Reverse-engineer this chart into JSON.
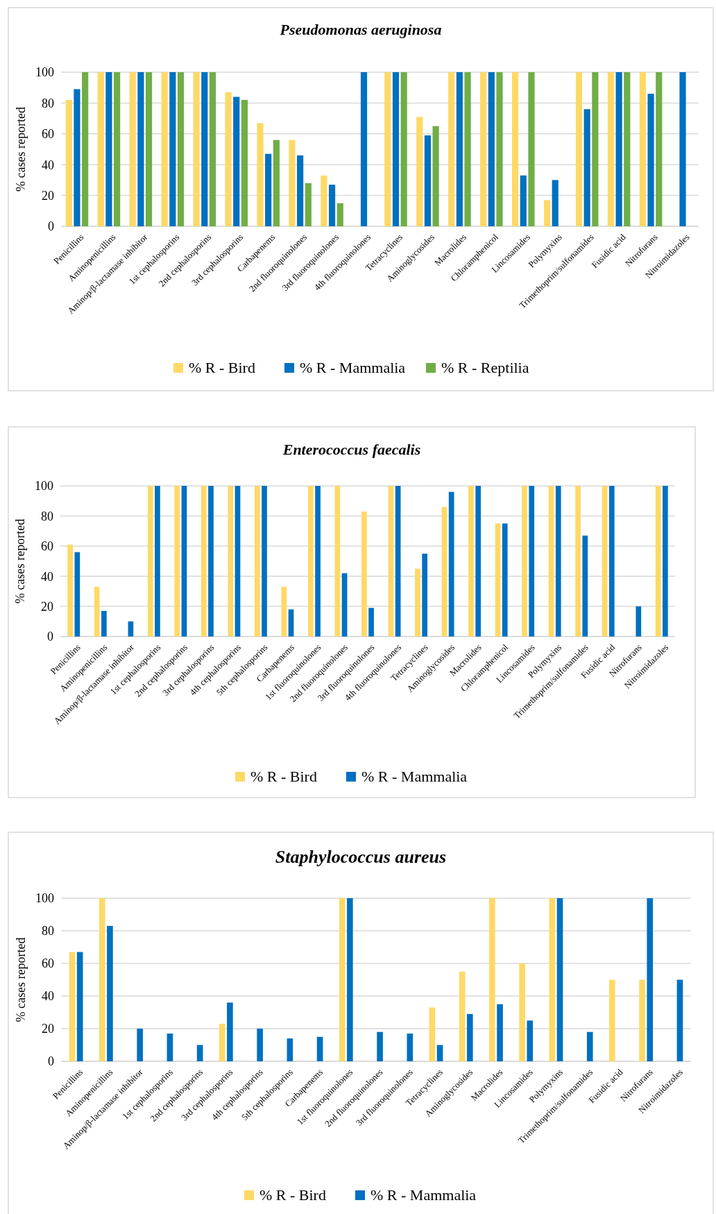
{
  "chart_data": [
    {
      "type": "bar",
      "title": "Pseudomonas aeruginosa",
      "ylabel": "% cases reported",
      "categories": [
        "Penicillins",
        "Aminopenicillins",
        "Aminop/β-lactamase inhibitor",
        "1st cephalosporins",
        "2nd cephalosporins",
        "3rd cephalosporins",
        "Carbapenems",
        "2nd fluoroquinolones",
        "3rd fluoroquinolones",
        "4th fluoroquinolones",
        "Tetracyclines",
        "Aminoglycosides",
        "Macrolides",
        "Chloramphenicol",
        "Lincosamides",
        "Polymyxins",
        "Trimethoprim/sulfonamides",
        "Fusidic acid",
        "Nitrofurans",
        "Nitroimidazoles"
      ],
      "series": [
        {
          "name": "% R - Bird",
          "color": "#ffd966",
          "values": [
            82,
            100,
            100,
            100,
            100,
            87,
            67,
            56,
            33,
            null,
            100,
            71,
            100,
            100,
            100,
            17,
            100,
            100,
            100,
            null
          ]
        },
        {
          "name": "% R - Mammalia",
          "color": "#0070c0",
          "values": [
            89,
            100,
            100,
            100,
            100,
            84,
            47,
            46,
            27,
            100,
            100,
            59,
            100,
            100,
            33,
            30,
            76,
            100,
            86,
            100
          ]
        },
        {
          "name": "% R - Reptilia",
          "color": "#70ad47",
          "values": [
            100,
            100,
            100,
            100,
            100,
            82,
            56,
            28,
            15,
            null,
            100,
            65,
            100,
            100,
            100,
            null,
            100,
            100,
            100,
            null
          ]
        }
      ],
      "ylim": [
        0,
        100
      ],
      "yticks": [
        0,
        20,
        40,
        60,
        80,
        100
      ],
      "grid": "y",
      "legend": "bottom"
    },
    {
      "type": "bar",
      "title": "Enterococcus faecalis",
      "ylabel": "% cases reported",
      "categories": [
        "Penicillins",
        "Aminopenicillins",
        "Aminop/β-lactamase inhibitor",
        "1st cephalosporins",
        "2nd cephalosporins",
        "3rd cephalosporins",
        "4th cephalosporins",
        "5th cephalosporins",
        "Carbapenems",
        "1st fluoroquinolones",
        "2nd fluoroquinolones",
        "3rd fluoroquinolones",
        "4th fluoroquinolones",
        "Tetracyclines",
        "Aminoglycosides",
        "Macrolides",
        "Chloramphenicol",
        "Lincosamides",
        "Polymyxins",
        "Trimethoprim/sulfonamides",
        "Fusidic acid",
        "Nitrofurans",
        "Nitroimidazoles"
      ],
      "series": [
        {
          "name": "% R - Bird",
          "color": "#ffd966",
          "values": [
            61,
            33,
            null,
            100,
            100,
            100,
            100,
            100,
            33,
            100,
            100,
            83,
            100,
            45,
            86,
            100,
            75,
            100,
            100,
            100,
            100,
            null,
            100
          ]
        },
        {
          "name": "% R - Mammalia",
          "color": "#0070c0",
          "values": [
            56,
            17,
            10,
            100,
            100,
            100,
            100,
            100,
            18,
            100,
            42,
            19,
            100,
            55,
            96,
            100,
            75,
            100,
            100,
            67,
            100,
            20,
            100
          ]
        }
      ],
      "ylim": [
        0,
        100
      ],
      "yticks": [
        0,
        20,
        40,
        60,
        80,
        100
      ],
      "grid": "y",
      "legend": "bottom"
    },
    {
      "type": "bar",
      "title": "Staphylococcus aureus",
      "ylabel": "% cases reported",
      "categories": [
        "Penicillins",
        "Aminopenicillins",
        "Aminop/β-lactamase inhibitor",
        "1st cephalosporins",
        "2nd cephalosporins",
        "3rd cephalosporins",
        "4th cephalosporins",
        "5th cephalosporins",
        "Carbapenems",
        "1st fluoroquinolones",
        "2nd fluoroquinolones",
        "3rd fluoroquinolones",
        "Tetracyclines",
        "Aminoglycosides",
        "Macrolides",
        "Lincosamides",
        "Polymyxins",
        "Trimethoprim/sulfonamides",
        "Fusidic acid",
        "Nitrofurans",
        "Nitroimidazoles"
      ],
      "series": [
        {
          "name": "% R - Bird",
          "color": "#ffd966",
          "values": [
            67,
            100,
            null,
            null,
            null,
            23,
            null,
            null,
            null,
            100,
            null,
            null,
            33,
            55,
            100,
            60,
            100,
            null,
            50,
            50,
            null
          ]
        },
        {
          "name": "% R - Mammalia",
          "color": "#0070c0",
          "values": [
            67,
            83,
            20,
            17,
            10,
            36,
            20,
            14,
            15,
            100,
            18,
            17,
            10,
            29,
            35,
            25,
            100,
            18,
            null,
            100,
            50
          ]
        }
      ],
      "ylim": [
        0,
        100
      ],
      "yticks": [
        0,
        20,
        40,
        60,
        80,
        100
      ],
      "grid": "y",
      "legend": "bottom"
    }
  ]
}
